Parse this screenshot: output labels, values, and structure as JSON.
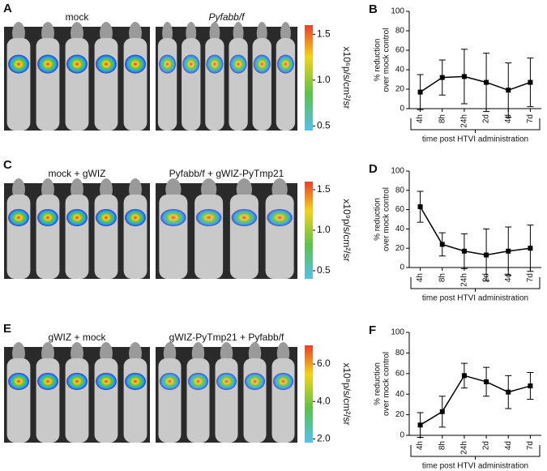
{
  "chart_data": [
    {
      "type": "line",
      "panel": "B",
      "categories": [
        "4h",
        "8h",
        "24h",
        "2d",
        "4d",
        "7d"
      ],
      "values": [
        17,
        32,
        33,
        27,
        19,
        27
      ],
      "errors": [
        18,
        18,
        28,
        30,
        28,
        25
      ],
      "ylabel": [
        "% reduction",
        "over mock control"
      ],
      "xlabel": "time post HTVI administration",
      "ylim": [
        0,
        100
      ],
      "yticks": [
        0,
        20,
        40,
        60,
        80,
        100
      ],
      "color": "#000000"
    },
    {
      "type": "line",
      "panel": "D",
      "categories": [
        "4h",
        "8h",
        "24h",
        "2d",
        "4d",
        "7d"
      ],
      "values": [
        63,
        24,
        17,
        13,
        17,
        20
      ],
      "errors": [
        16,
        12,
        18,
        27,
        25,
        24
      ],
      "ylabel": [
        "% reduction",
        "over mock control"
      ],
      "xlabel": "time post HTVI administration",
      "ylim": [
        0,
        100
      ],
      "yticks": [
        0,
        20,
        40,
        60,
        80,
        100
      ],
      "color": "#000000"
    },
    {
      "type": "line",
      "panel": "F",
      "categories": [
        "4h",
        "8h",
        "24h",
        "2d",
        "4d",
        "7d"
      ],
      "values": [
        10,
        23,
        58,
        52,
        42,
        48
      ],
      "errors": [
        12,
        15,
        12,
        14,
        16,
        13
      ],
      "ylabel": [
        "% reduction",
        "over mock control"
      ],
      "xlabel": "time post HTVI administration",
      "ylim": [
        0,
        100
      ],
      "yticks": [
        0,
        20,
        40,
        60,
        80,
        100
      ],
      "color": "#000000"
    }
  ],
  "image_panels": [
    {
      "panel": "A",
      "images": [
        {
          "caption": "mock",
          "mice": 5
        },
        {
          "caption": "Pyfabb/f",
          "mice": 6
        }
      ],
      "colorbar": {
        "unit": "x10⁶p/s/cm²/sr",
        "range": [
          0.45,
          1.6
        ],
        "ticks": [
          0.5,
          {
            "value": 1,
            "label": "1.0"
          },
          1.5
        ]
      }
    },
    {
      "panel": "C",
      "images": [
        {
          "caption": "mock + gWIZ",
          "mice": 5
        },
        {
          "caption": "Pyfabb/f + gWIZ-PyTmp21",
          "mice": 4
        }
      ],
      "colorbar": {
        "unit": "x10⁹p/s/cm²/sr",
        "range": [
          0.4,
          1.6
        ],
        "ticks": [
          0.5,
          {
            "value": 1,
            "label": "1.0"
          },
          1.5
        ]
      }
    },
    {
      "panel": "E",
      "images": [
        {
          "caption": "gWIZ + mock",
          "mice": 5
        },
        {
          "caption": "gWIZ-PyTmp21 + Pyfabb/f",
          "mice": 5
        }
      ],
      "colorbar": {
        "unit": "x10⁸p/s/cm²/sr",
        "range": [
          1.8,
          7.0
        ],
        "ticks": [
          {
            "value": 2,
            "label": "2.0"
          },
          {
            "value": 4,
            "label": "4.0"
          },
          {
            "value": 6,
            "label": "6.0"
          }
        ]
      }
    }
  ]
}
